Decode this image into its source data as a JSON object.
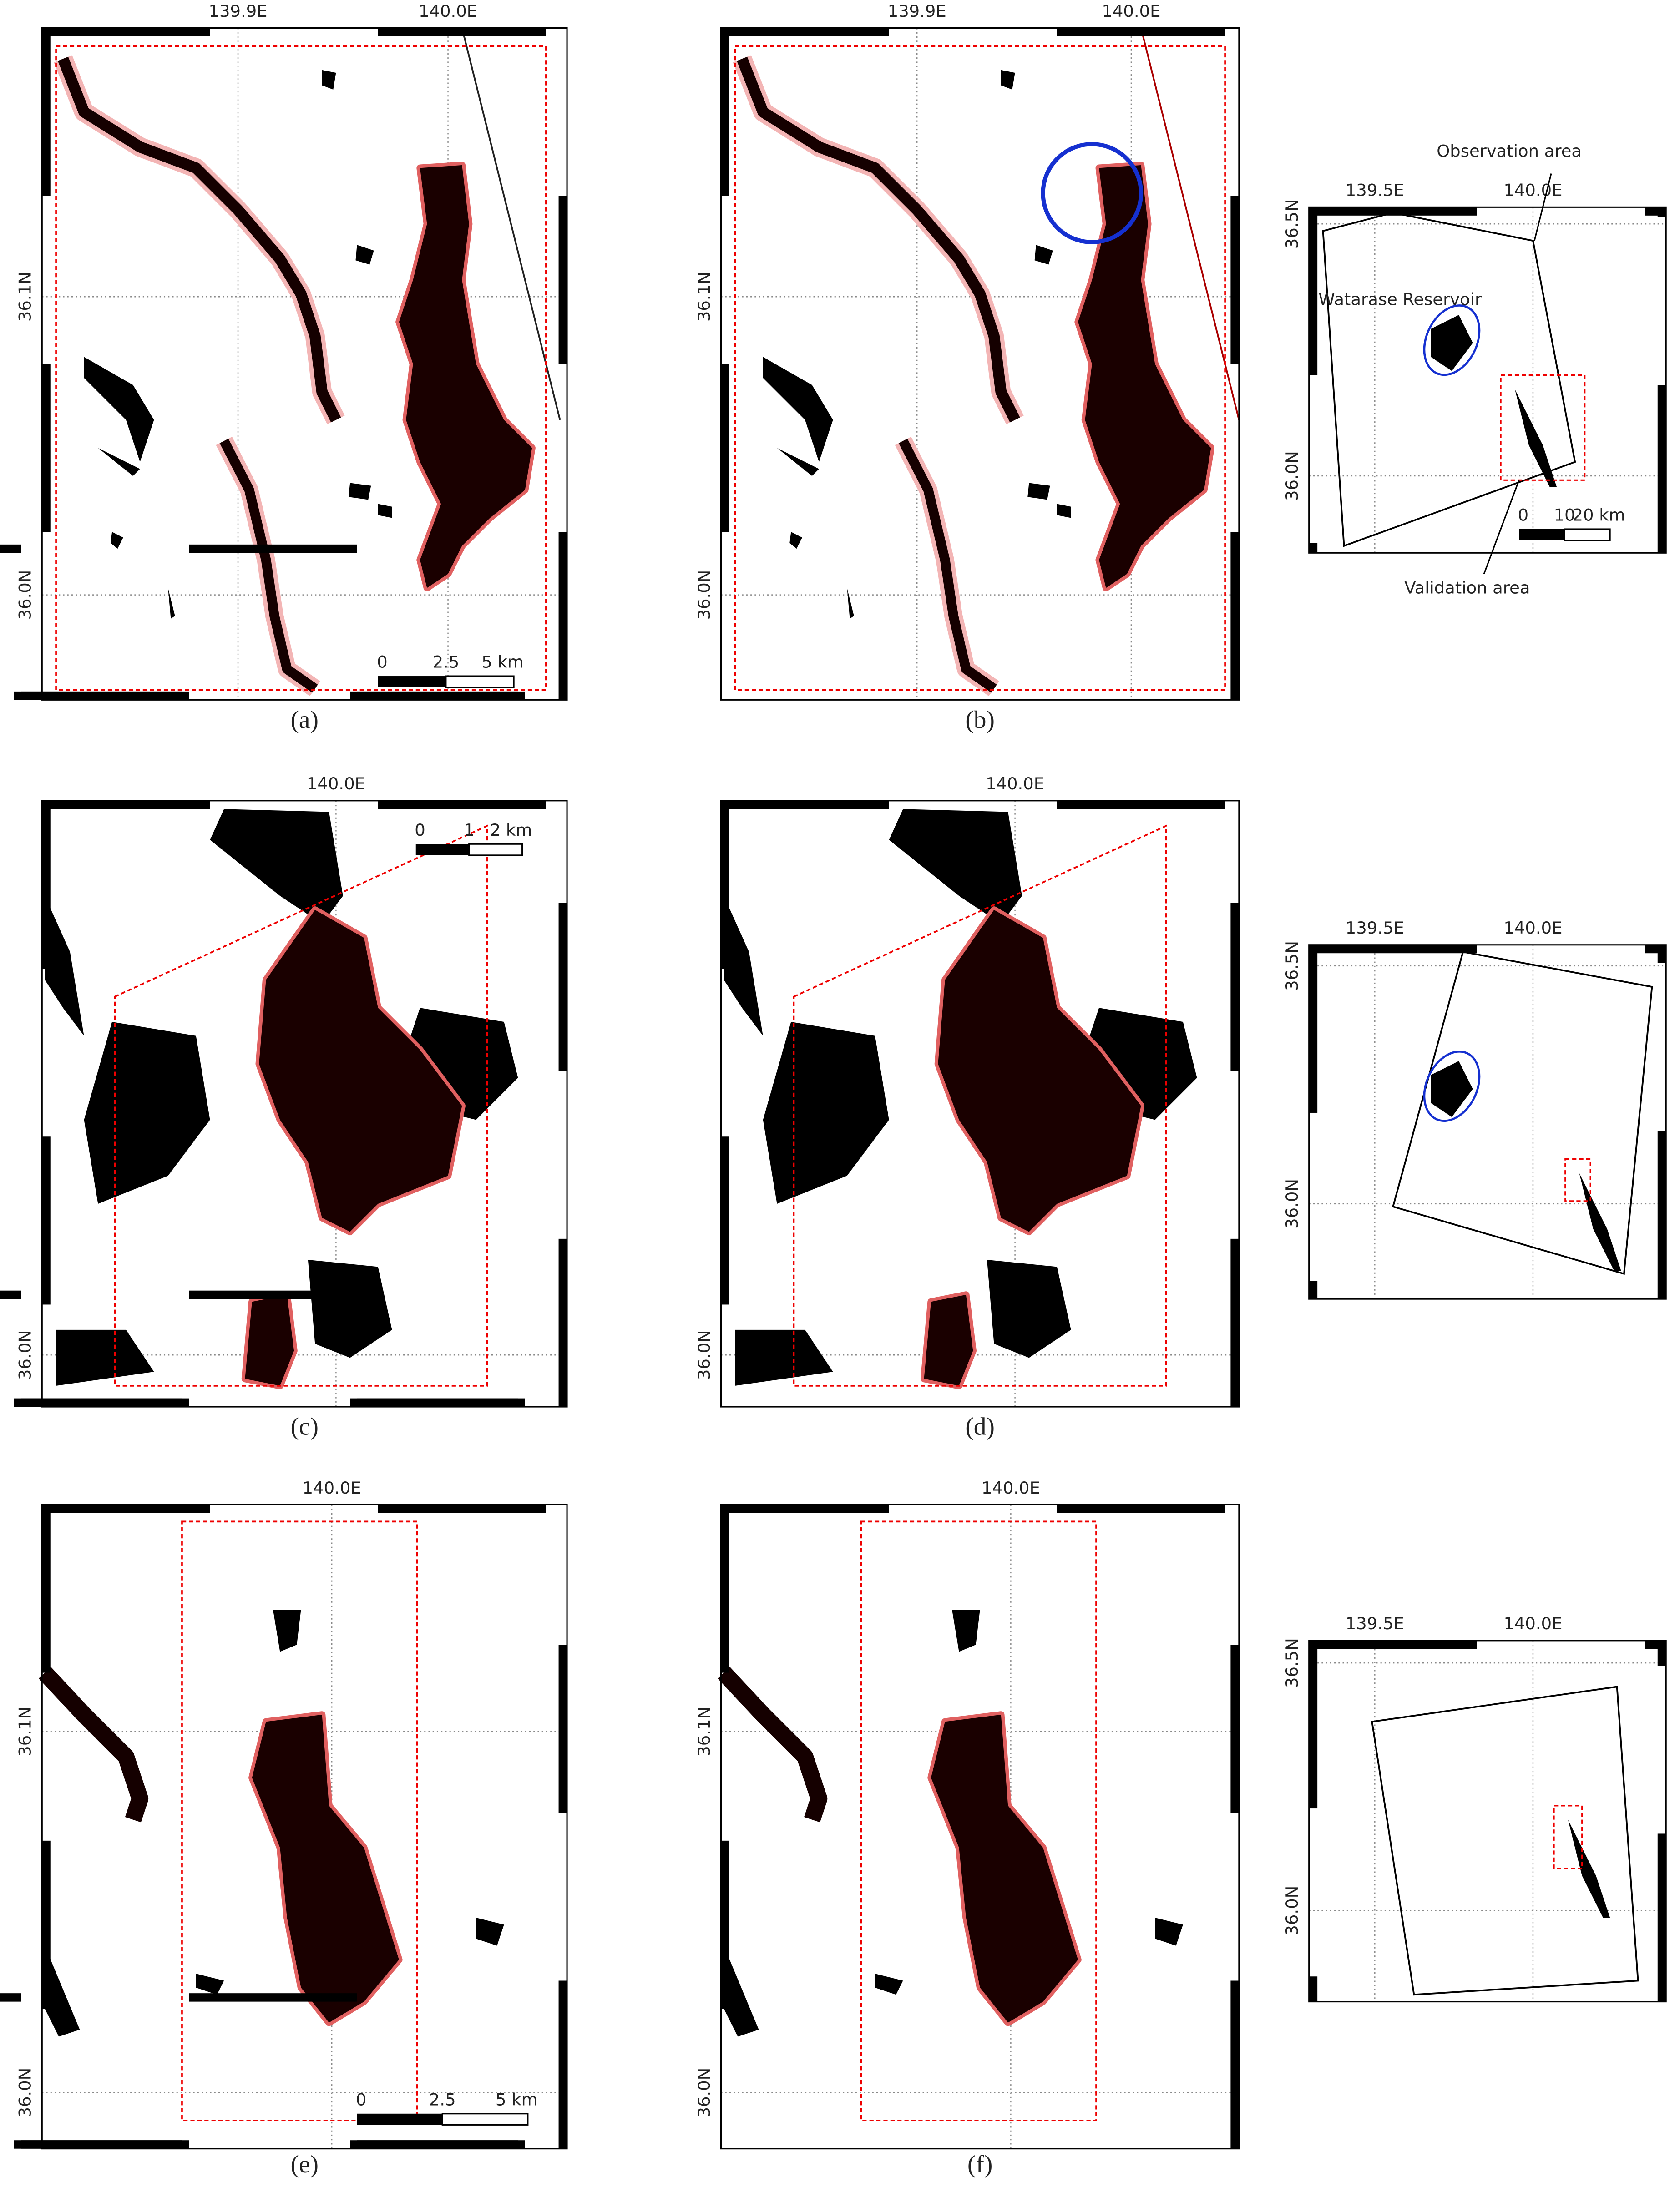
{
  "panels": [
    {
      "caption": "(a)",
      "lon_ticks": [
        "139.9E",
        "140.0E"
      ],
      "lat_ticks": [
        "36.1N",
        "36.0N"
      ],
      "scale_bar": [
        "0",
        "2.5",
        "5 km"
      ]
    },
    {
      "caption": "(b)",
      "lon_ticks": [
        "139.9E",
        "140.0E"
      ],
      "lat_ticks": [
        "36.1N",
        "36.0N"
      ]
    },
    {
      "caption": "(c)",
      "lon_ticks": [
        "140.0E"
      ],
      "lat_ticks": [
        "36.0N"
      ],
      "scale_bar": [
        "0",
        "1",
        "2 km"
      ]
    },
    {
      "caption": "(d)",
      "lon_ticks": [
        "140.0E"
      ],
      "lat_ticks": [
        "36.0N"
      ]
    },
    {
      "caption": "(e)",
      "lon_ticks": [
        "140.0E"
      ],
      "lat_ticks": [
        "36.1N",
        "36.0N"
      ],
      "scale_bar": [
        "0",
        "2.5",
        "5 km"
      ]
    },
    {
      "caption": "(f)",
      "lon_ticks": [
        "140.0E"
      ],
      "lat_ticks": [
        "36.1N",
        "36.0N"
      ]
    }
  ],
  "overview_maps": [
    {
      "lon_ticks": [
        "139.5E",
        "140.0E"
      ],
      "lat_ticks": [
        "36.5N",
        "36.0N"
      ],
      "annotations": [
        "Observation area",
        "Watarase Reservoir",
        "Validation area"
      ],
      "scale_bar": [
        "0",
        "10",
        "20 km"
      ]
    },
    {
      "lon_ticks": [
        "139.5E",
        "140.0E"
      ],
      "lat_ticks": [
        "36.5N",
        "36.0N"
      ]
    },
    {
      "lon_ticks": [
        "139.5E",
        "140.0E"
      ],
      "lat_ticks": [
        "36.5N",
        "36.0N"
      ]
    }
  ]
}
